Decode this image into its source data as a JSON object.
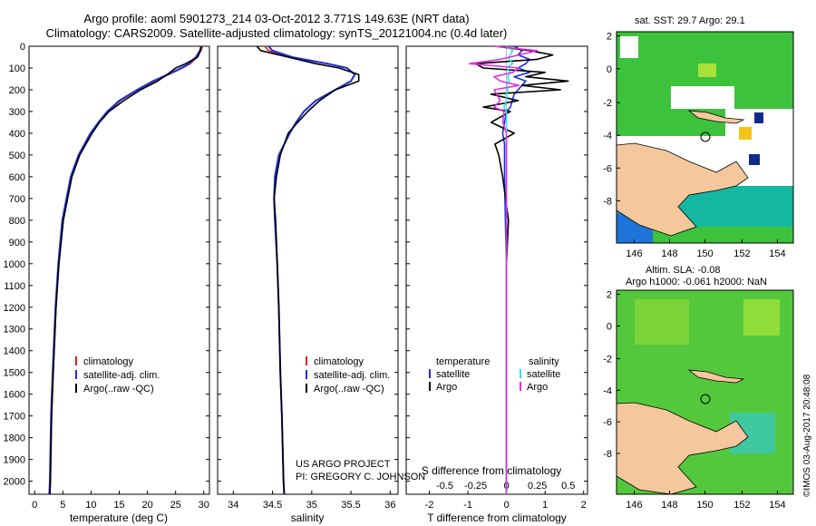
{
  "titles": {
    "line1": "Argo profile: aoml 5901273_214 03-Oct-2012 3.771S 149.63E (NRT data)",
    "line2": "Climatology: CARS2009. Satellite-adjusted climatology: synTS_20121004.nc (0.4d later)"
  },
  "map_sst": {
    "title": "sat. SST: 29.7 Argo: 29.1",
    "xticks": [
      "146",
      "148",
      "150",
      "152",
      "154"
    ],
    "yticks": [
      "2",
      "0",
      "-2",
      "-4",
      "-6",
      "-8"
    ]
  },
  "map_sla": {
    "title1": "Altim. SLA: -0.08",
    "title2": "Argo h1000: -0.061 h2000: NaN",
    "xticks": [
      "146",
      "148",
      "150",
      "152",
      "154"
    ],
    "yticks": [
      "2",
      "0",
      "-2",
      "-4",
      "-6",
      "-8"
    ]
  },
  "project": {
    "line1": "US ARGO PROJECT",
    "line2": "PI: GREGORY C. JOHNSON"
  },
  "stamp": "©IMOS 03-Aug-2017 20:48:08",
  "colors": {
    "climatology": "#e02020",
    "satellite": "#1a2ee0",
    "argo": "#000000",
    "sal_satellite": "#30e0e8",
    "sal_argo": "#e030e0",
    "ocean_green": "#3cc23c",
    "land": "#f4c79c"
  },
  "chart_data": [
    {
      "type": "line",
      "name": "temperature-profile",
      "xlabel": "temperature (deg C)",
      "ylabel": "",
      "xlim": [
        -1,
        31
      ],
      "ylim": [
        2060,
        0
      ],
      "xticks": [
        "0",
        "5",
        "10",
        "15",
        "20",
        "25",
        "30"
      ],
      "yticks": [
        "0",
        "100",
        "200",
        "300",
        "400",
        "500",
        "600",
        "700",
        "800",
        "900",
        "1000",
        "1100",
        "1200",
        "1300",
        "1400",
        "1500",
        "1600",
        "1700",
        "1800",
        "1900",
        "2000"
      ],
      "legend": [
        "climatology",
        "satellite-adj. clim.",
        "Argo(..raw -QC)"
      ],
      "depth": [
        0,
        20,
        50,
        80,
        100,
        130,
        160,
        200,
        250,
        300,
        350,
        400,
        500,
        600,
        800,
        1000,
        1200,
        1500,
        1700,
        2000,
        2060
      ],
      "series": [
        {
          "name": "climatology",
          "values": [
            29.8,
            29.5,
            28.8,
            27.6,
            26.2,
            23.8,
            21.2,
            18.4,
            15.2,
            13.0,
            11.4,
            10.0,
            7.9,
            6.5,
            5.0,
            4.3,
            3.8,
            3.3,
            3.0,
            2.8,
            2.7
          ]
        },
        {
          "name": "satellite-adj. clim.",
          "values": [
            29.6,
            29.3,
            28.6,
            27.4,
            26.0,
            23.6,
            21.0,
            18.2,
            15.0,
            12.9,
            11.3,
            9.9,
            7.8,
            6.4,
            4.9,
            4.2,
            3.7,
            3.2,
            2.9,
            2.7,
            2.6
          ]
        },
        {
          "name": "Argo(..raw -QC)",
          "values": [
            29.5,
            29.4,
            28.9,
            26.8,
            25.0,
            23.5,
            21.8,
            18.8,
            15.8,
            13.2,
            11.5,
            10.2,
            8.0,
            6.6,
            5.1,
            4.3,
            3.8,
            3.3,
            3.0,
            2.8,
            2.7
          ]
        }
      ]
    },
    {
      "type": "line",
      "name": "salinity-profile",
      "xlabel": "salinity",
      "xlim": [
        33.8,
        36.1
      ],
      "ylim": [
        2060,
        0
      ],
      "xticks": [
        "34",
        "34.5",
        "35",
        "35.5",
        "36"
      ],
      "legend": [
        "climatology",
        "satellite-adj. clim.",
        "Argo(..raw -QC)"
      ],
      "depth": [
        0,
        20,
        50,
        80,
        100,
        130,
        160,
        200,
        250,
        300,
        350,
        400,
        500,
        600,
        700,
        800,
        1000,
        1200,
        1500,
        1700,
        2000,
        2060
      ],
      "series": [
        {
          "name": "climatology",
          "values": [
            34.4,
            34.45,
            34.7,
            35.2,
            35.45,
            35.55,
            35.5,
            35.3,
            35.05,
            34.9,
            34.8,
            34.72,
            34.58,
            34.53,
            34.52,
            34.53,
            34.56,
            34.58,
            34.6,
            34.62,
            34.64,
            34.65
          ]
        },
        {
          "name": "satellite-adj. clim.",
          "values": [
            34.45,
            34.5,
            34.75,
            35.2,
            35.45,
            35.55,
            35.5,
            35.3,
            35.05,
            34.9,
            34.8,
            34.72,
            34.58,
            34.53,
            34.52,
            34.53,
            34.56,
            34.58,
            34.6,
            34.62,
            34.64,
            34.65
          ]
        },
        {
          "name": "Argo(..raw -QC)",
          "values": [
            34.3,
            34.35,
            34.7,
            35.05,
            35.35,
            35.6,
            35.6,
            35.3,
            35.1,
            34.95,
            34.82,
            34.7,
            34.6,
            34.55,
            34.52,
            34.54,
            34.56,
            34.58,
            34.6,
            34.62,
            34.64,
            34.65
          ]
        }
      ]
    },
    {
      "type": "line",
      "name": "difference-profile",
      "xlabel": "T difference from climatology",
      "xlabel_top": "S difference from climatology",
      "xlim": [
        -2.6,
        2.1
      ],
      "ylim": [
        2060,
        0
      ],
      "xticks": [
        "-2",
        "-1",
        "0",
        "1",
        "2"
      ],
      "xticks_s": [
        "-0.5",
        "-0.25",
        "0",
        "0.25",
        "0.5"
      ],
      "legend_t_title": "temperature",
      "legend_s_title": "salinity",
      "legend": [
        "satellite",
        "Argo",
        "satellite",
        "Argo"
      ],
      "depth": [
        0,
        20,
        40,
        60,
        80,
        100,
        120,
        140,
        160,
        180,
        200,
        220,
        250,
        280,
        300,
        350,
        400,
        450,
        500,
        600,
        800,
        1000,
        1200,
        1500,
        2000,
        2060
      ],
      "series": [
        {
          "name": "T satellite",
          "values": [
            0.2,
            0.4,
            0.3,
            0.6,
            0.5,
            0.3,
            0.6,
            0.2,
            0.5,
            0.4,
            0.3,
            0.2,
            0.15,
            0.1,
            0.0,
            -0.05,
            -0.1,
            -0.05,
            -0.05,
            -0.05,
            -0.03,
            0,
            0,
            0,
            0,
            0
          ]
        },
        {
          "name": "T Argo",
          "values": [
            -0.3,
            0.6,
            1.2,
            0.8,
            -0.8,
            -0.6,
            1.0,
            0.5,
            1.6,
            0.4,
            1.4,
            -0.4,
            0.3,
            -0.6,
            0.1,
            -0.4,
            0.2,
            -0.3,
            -0.2,
            -0.1,
            0.05,
            0.0,
            0.0,
            0.0,
            0.0,
            0.0
          ]
        },
        {
          "name": "S satellite",
          "values": [
            0.0,
            0.05,
            0.03,
            0.02,
            0.05,
            0.0,
            0.03,
            0.01,
            0.02,
            0.0,
            0.01,
            0.0,
            0.0,
            -0.02,
            0.0,
            0.0,
            0.0,
            0.0,
            0.0,
            0.0,
            0.0,
            0.0,
            0.0,
            0.0,
            0.0,
            0.0
          ]
        },
        {
          "name": "S Argo",
          "values": [
            -0.1,
            0.25,
            0.1,
            -0.05,
            -0.3,
            0.1,
            0.05,
            -0.1,
            -0.05,
            0.1,
            -0.1,
            -0.08,
            -0.05,
            -0.1,
            -0.02,
            -0.03,
            0.0,
            0.0,
            0.0,
            0.0,
            0.0,
            0.0,
            0.0,
            0.0,
            0.0,
            0.0
          ]
        }
      ]
    }
  ]
}
